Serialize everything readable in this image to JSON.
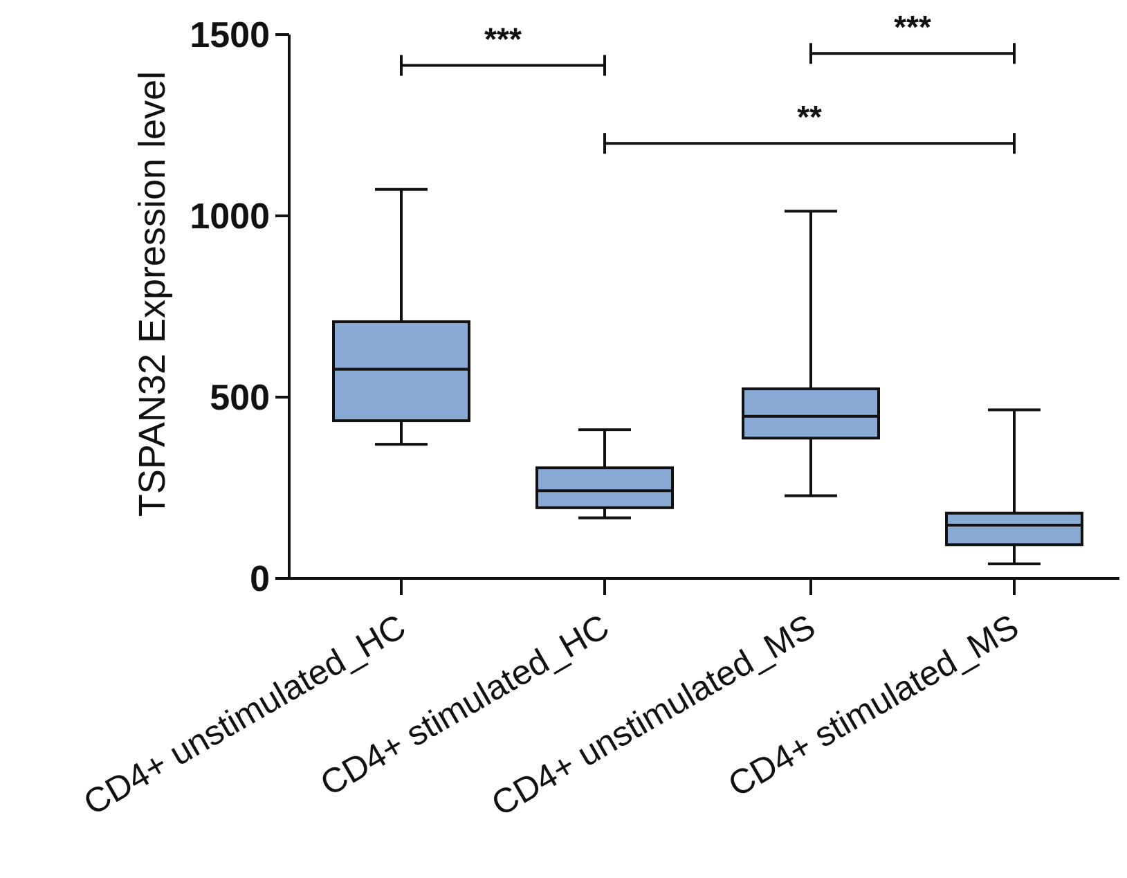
{
  "chart_data": {
    "type": "box",
    "title": "",
    "xlabel": "",
    "ylabel": "TSPAN32 Expression level",
    "ylim": [
      0,
      1500
    ],
    "yticks": [
      0,
      500,
      1000,
      1500
    ],
    "ytick_labels": [
      "0",
      "500",
      "1000",
      "1500"
    ],
    "box_color": "#8aaad6",
    "categories": [
      "CD4+ unstimulated_HC",
      "CD4+ stimulated_HC",
      "CD4+ unstimulated_MS",
      "CD4+ stimulated_MS"
    ],
    "boxes": [
      {
        "name": "CD4+ unstimulated_HC",
        "min": 370,
        "q1": 435,
        "median": 577,
        "q3": 708,
        "max": 1073
      },
      {
        "name": "CD4+ stimulated_HC",
        "min": 167,
        "q1": 195,
        "median": 242,
        "q3": 305,
        "max": 410
      },
      {
        "name": "CD4+ unstimulated_MS",
        "min": 228,
        "q1": 387,
        "median": 447,
        "q3": 523,
        "max": 1013
      },
      {
        "name": "CD4+ stimulated_MS",
        "min": 40,
        "q1": 93,
        "median": 147,
        "q3": 180,
        "max": 465
      }
    ],
    "significance": [
      {
        "from": 0,
        "to": 1,
        "y": 1415,
        "label": "***"
      },
      {
        "from": 2,
        "to": 3,
        "y": 1448,
        "label": "***"
      },
      {
        "from": 1,
        "to": 3,
        "y": 1200,
        "label": "**"
      }
    ]
  }
}
